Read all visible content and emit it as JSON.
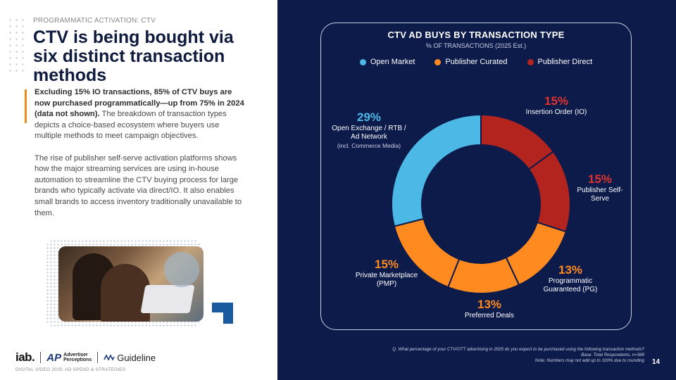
{
  "left": {
    "eyebrow": "PROGRAMMATIC ACTIVATION: CTV",
    "headline": "CTV is being bought via six distinct transaction methods",
    "para1_bold": "Excluding 15% IO transactions, 85% of CTV buys are now purchased programmatically—up from 75% in 2024 (data not shown).",
    "para1_rest": " The breakdown of transaction types depicts a choice-based ecosystem where buyers use multiple methods to meet campaign objectives.",
    "para2": "The rise of publisher self-serve activation platforms shows how the major streaming services are using in-house automation to streamline the CTV buying process for large brands who typically activate via direct/IO. It also enables small brands to access inventory traditionally unavailable to them."
  },
  "logos": {
    "iab": "iab.",
    "ap_line1": "Advertiser",
    "ap_line2": "Perceptions",
    "guideline": "Guideline"
  },
  "footer": {
    "report": "DIGITAL VIDEO 2025: AD SPEND & STRATEGIES",
    "page": "14",
    "q": "Q. What percentage of your CTV/OTT advertising in 2025 do you expect to be purchased using the following transaction methods?",
    "base": "Base: Total Respondents, n=368",
    "note": "Note: Numbers may not add up to 100% due to rounding"
  },
  "colors": {
    "open_market": "#4bb8e6",
    "publisher_curated": "#ff8a1f",
    "publisher_direct": "#b3241f",
    "background": "#0d1b4b"
  },
  "chart_data": {
    "type": "pie",
    "variant": "donut",
    "title": "CTV AD BUYS BY TRANSACTION TYPE",
    "subtitle": "% OF TRANSACTIONS (2025 Est.)",
    "legend": [
      {
        "name": "Open Market",
        "group": "open_market"
      },
      {
        "name": "Publisher Curated",
        "group": "publisher_curated"
      },
      {
        "name": "Publisher Direct",
        "group": "publisher_direct"
      }
    ],
    "slices": [
      {
        "label": "Insertion Order (IO)",
        "value": 15,
        "pct_label": "15%",
        "group": "publisher_direct"
      },
      {
        "label": "Publisher Self-Serve",
        "value": 15,
        "pct_label": "15%",
        "group": "publisher_direct"
      },
      {
        "label": "Programmatic Guaranteed (PG)",
        "value": 13,
        "pct_label": "13%",
        "group": "publisher_curated"
      },
      {
        "label": "Preferred Deals",
        "value": 13,
        "pct_label": "13%",
        "group": "publisher_curated"
      },
      {
        "label": "Private Marketplace (PMP)",
        "value": 15,
        "pct_label": "15%",
        "group": "publisher_curated"
      },
      {
        "label": "Open Exchange / RTB / Ad Network",
        "value": 29,
        "pct_label": "29%",
        "group": "open_market",
        "note": "(incl. Commerce Media)"
      }
    ]
  }
}
